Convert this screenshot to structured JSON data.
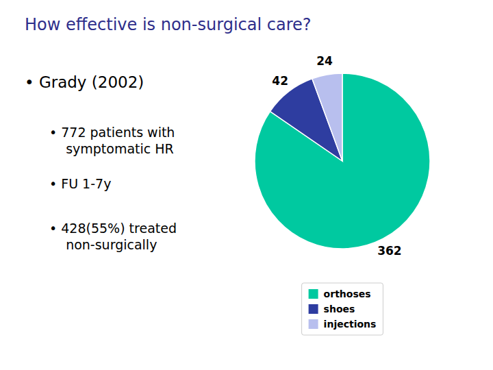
{
  "chart_data": {
    "type": "pie",
    "title": "How effective is non-surgical care?",
    "annotations": [
      "• Grady (2002)",
      "• 772 patients with\n    symptomatic HR",
      "• FU 1-7y",
      "• 428(55%) treated\n    non-surgically"
    ],
    "categories": [
      "orthoses",
      "shoes",
      "injections"
    ],
    "values": [
      362,
      42,
      24
    ],
    "colors": [
      "#00C9A0",
      "#2E3DA0",
      "#B8BFEE"
    ],
    "data_labels": true,
    "legend": "bottom"
  }
}
